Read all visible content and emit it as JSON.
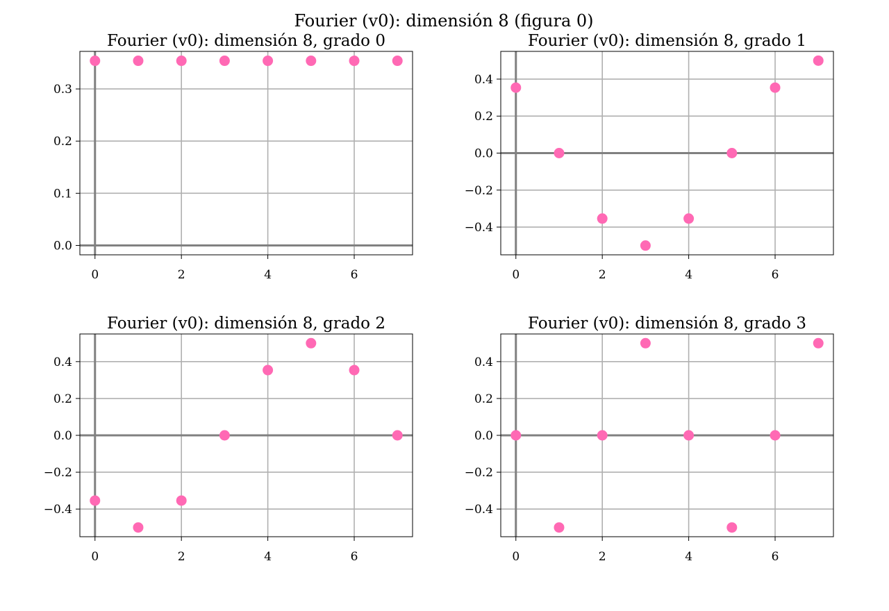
{
  "figure": {
    "title": "Fourier (v0): dimensión 8 (figura 0)"
  },
  "colors": {
    "marker": "#ff69b4",
    "grid": "#b0b0b0",
    "zero_axis": "#808080",
    "frame": "#000000"
  },
  "chart_data": [
    {
      "type": "scatter",
      "title": "Fourier (v0): dimensión 8, grado 0",
      "xlabel": "",
      "ylabel": "",
      "x": [
        0,
        1,
        2,
        3,
        4,
        5,
        6,
        7
      ],
      "y": [
        0.354,
        0.354,
        0.354,
        0.354,
        0.354,
        0.354,
        0.354,
        0.354
      ],
      "xlim": [
        -0.35,
        7.35
      ],
      "ylim": [
        -0.018,
        0.372
      ],
      "xticks": [
        0,
        2,
        4,
        6
      ],
      "xtick_labels": [
        "0",
        "2",
        "4",
        "6"
      ],
      "yticks": [
        0.0,
        0.1,
        0.2,
        0.3
      ],
      "ytick_labels": [
        "0.0",
        "0.1",
        "0.2",
        "0.3"
      ],
      "grid": true
    },
    {
      "type": "scatter",
      "title": "Fourier (v0): dimensión 8, grado 1",
      "xlabel": "",
      "ylabel": "",
      "x": [
        0,
        1,
        2,
        3,
        4,
        5,
        6,
        7
      ],
      "y": [
        0.354,
        0.0,
        -0.354,
        -0.5,
        -0.354,
        0.0,
        0.354,
        0.5
      ],
      "xlim": [
        -0.35,
        7.35
      ],
      "ylim": [
        -0.55,
        0.55
      ],
      "xticks": [
        0,
        2,
        4,
        6
      ],
      "xtick_labels": [
        "0",
        "2",
        "4",
        "6"
      ],
      "yticks": [
        -0.4,
        -0.2,
        0.0,
        0.2,
        0.4
      ],
      "ytick_labels": [
        "−0.4",
        "−0.2",
        "0.0",
        "0.2",
        "0.4"
      ],
      "grid": true
    },
    {
      "type": "scatter",
      "title": "Fourier (v0): dimensión 8, grado 2",
      "xlabel": "",
      "ylabel": "",
      "x": [
        0,
        1,
        2,
        3,
        4,
        5,
        6,
        7
      ],
      "y": [
        -0.354,
        -0.5,
        -0.354,
        0.0,
        0.354,
        0.5,
        0.354,
        0.0
      ],
      "xlim": [
        -0.35,
        7.35
      ],
      "ylim": [
        -0.55,
        0.55
      ],
      "xticks": [
        0,
        2,
        4,
        6
      ],
      "xtick_labels": [
        "0",
        "2",
        "4",
        "6"
      ],
      "yticks": [
        -0.4,
        -0.2,
        0.0,
        0.2,
        0.4
      ],
      "ytick_labels": [
        "−0.4",
        "−0.2",
        "0.0",
        "0.2",
        "0.4"
      ],
      "grid": true
    },
    {
      "type": "scatter",
      "title": "Fourier (v0): dimensión 8, grado 3",
      "xlabel": "",
      "ylabel": "",
      "x": [
        0,
        1,
        2,
        3,
        4,
        5,
        6,
        7
      ],
      "y": [
        0.0,
        -0.5,
        0.0,
        0.5,
        0.0,
        -0.5,
        0.0,
        0.5
      ],
      "xlim": [
        -0.35,
        7.35
      ],
      "ylim": [
        -0.55,
        0.55
      ],
      "xticks": [
        0,
        2,
        4,
        6
      ],
      "xtick_labels": [
        "0",
        "2",
        "4",
        "6"
      ],
      "yticks": [
        -0.4,
        -0.2,
        0.0,
        0.2,
        0.4
      ],
      "ytick_labels": [
        "−0.4",
        "−0.2",
        "0.0",
        "0.2",
        "0.4"
      ],
      "grid": true
    }
  ]
}
